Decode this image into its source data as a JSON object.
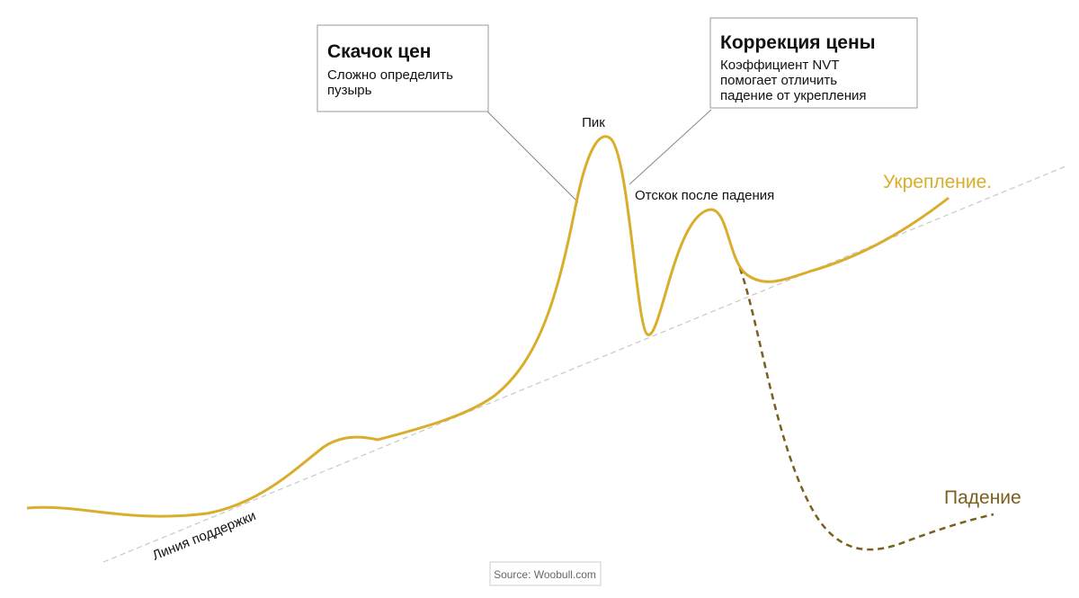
{
  "callouts": [
    {
      "title": "Скачок цен",
      "lines": [
        "Сложно определить",
        "пузырь"
      ]
    },
    {
      "title": "Коррекция цены",
      "lines": [
        "Коэффициент NVT",
        "помогает отличить",
        "падение от укрепления"
      ]
    }
  ],
  "labels": {
    "peak": "Пик",
    "rebound": "Отскок после падения",
    "strengthening": "Укрепление.",
    "fall": "Падение",
    "support": "Линия поддержки"
  },
  "source": "Source: Woobull.com"
}
